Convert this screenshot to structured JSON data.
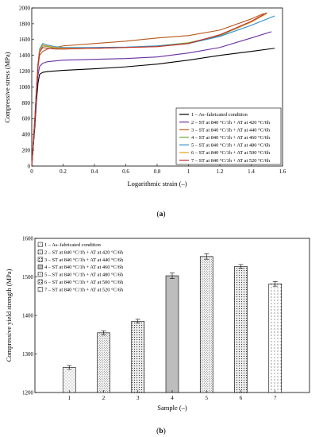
{
  "chart_data": [
    {
      "type": "line",
      "caption_prefix": "(",
      "caption_letter": "a",
      "caption_suffix": ")",
      "xlabel": "Logarithmic strain (–)",
      "ylabel": "Compressive stress (MPa)",
      "xlim": [
        0,
        1.6
      ],
      "ylim": [
        0,
        2000
      ],
      "xticks": [
        "0",
        "0.2",
        "0.4",
        "0.6",
        "0.8",
        "1",
        "1.2",
        "1.4",
        "1.6"
      ],
      "yticks": [
        "0",
        "200",
        "400",
        "600",
        "800",
        "1000",
        "1200",
        "1400",
        "1600",
        "1800",
        "2000"
      ],
      "legend_position": "bottom-right",
      "series": [
        {
          "name": "1 – As–fabricated condition",
          "color": "#000000",
          "x": [
            0,
            0.01,
            0.02,
            0.03,
            0.04,
            0.05,
            0.07,
            0.1,
            0.2,
            0.4,
            0.6,
            0.8,
            1.0,
            1.2,
            1.4,
            1.55
          ],
          "y": [
            0,
            250,
            500,
            820,
            1050,
            1160,
            1185,
            1195,
            1210,
            1230,
            1255,
            1290,
            1340,
            1400,
            1450,
            1490
          ]
        },
        {
          "name": "2 – ST at 840 °C/1h + AT at 420 °C/6h",
          "color": "#6a2fa0",
          "x": [
            0,
            0.01,
            0.02,
            0.03,
            0.04,
            0.05,
            0.07,
            0.1,
            0.2,
            0.4,
            0.6,
            0.8,
            1.0,
            1.2,
            1.4,
            1.53
          ],
          "y": [
            0,
            280,
            560,
            900,
            1150,
            1260,
            1300,
            1320,
            1340,
            1350,
            1360,
            1380,
            1430,
            1500,
            1620,
            1700
          ]
        },
        {
          "name": "3 – ST at 840 °C/1h + AT at 440 °C/6h",
          "color": "#b5561b",
          "x": [
            0,
            0.01,
            0.02,
            0.03,
            0.04,
            0.05,
            0.07,
            0.1,
            0.2,
            0.4,
            0.6,
            0.8,
            1.0,
            1.2,
            1.4,
            1.48
          ],
          "y": [
            0,
            300,
            600,
            950,
            1250,
            1400,
            1450,
            1480,
            1520,
            1550,
            1580,
            1620,
            1650,
            1720,
            1860,
            1930
          ]
        },
        {
          "name": "4 – ST at 840 °C/1h + AT at 460 °C/6h",
          "color": "#6fa33a",
          "x": [
            0,
            0.01,
            0.02,
            0.03,
            0.04,
            0.05,
            0.07,
            0.1,
            0.15,
            0.2,
            0.4,
            0.6,
            0.8,
            1.0,
            1.2,
            1.4,
            1.48
          ],
          "y": [
            0,
            300,
            600,
            960,
            1270,
            1450,
            1520,
            1510,
            1490,
            1480,
            1490,
            1500,
            1520,
            1560,
            1650,
            1820,
            1910
          ]
        },
        {
          "name": "5 – ST at 840 °C/1h + AT at 480 °C/6h",
          "color": "#2e8bc9",
          "x": [
            0,
            0.01,
            0.02,
            0.03,
            0.04,
            0.05,
            0.07,
            0.1,
            0.15,
            0.2,
            0.4,
            0.6,
            0.8,
            1.0,
            1.2,
            1.4,
            1.55
          ],
          "y": [
            0,
            310,
            620,
            980,
            1300,
            1480,
            1550,
            1530,
            1510,
            1500,
            1500,
            1505,
            1520,
            1550,
            1640,
            1780,
            1900
          ]
        },
        {
          "name": "6 – ST at 840 °C/1h + AT at 500 °C/6h",
          "color": "#e6a118",
          "x": [
            0,
            0.01,
            0.02,
            0.03,
            0.04,
            0.05,
            0.07,
            0.1,
            0.15,
            0.2,
            0.4,
            0.6,
            0.8,
            1.0,
            1.2,
            1.4,
            1.5
          ],
          "y": [
            0,
            305,
            610,
            970,
            1290,
            1460,
            1530,
            1520,
            1500,
            1490,
            1490,
            1500,
            1510,
            1550,
            1660,
            1820,
            1930
          ]
        },
        {
          "name": "7 – ST at 840 °C/1h + AT at 520 °C/6h",
          "color": "#c0282e",
          "x": [
            0,
            0.01,
            0.02,
            0.03,
            0.04,
            0.05,
            0.07,
            0.1,
            0.15,
            0.2,
            0.4,
            0.6,
            0.8,
            1.0,
            1.2,
            1.4,
            1.5
          ],
          "y": [
            0,
            300,
            600,
            960,
            1280,
            1440,
            1500,
            1490,
            1480,
            1480,
            1490,
            1500,
            1510,
            1550,
            1660,
            1830,
            1940
          ]
        }
      ]
    },
    {
      "type": "bar",
      "caption_prefix": "(",
      "caption_letter": "b",
      "caption_suffix": ")",
      "xlabel": "Sample (–)",
      "ylabel": "Compressive yield strength (MPa)",
      "ylim": [
        1200,
        1600
      ],
      "yticks": [
        "1200",
        "1300",
        "1400",
        "1500",
        "1600"
      ],
      "categories": [
        "1",
        "2",
        "3",
        "4",
        "5",
        "6",
        "7"
      ],
      "values": [
        1265,
        1355,
        1385,
        1503,
        1553,
        1527,
        1482
      ],
      "errors": [
        5,
        5,
        5,
        7,
        7,
        5,
        6
      ],
      "legend_position": "top-left",
      "legend": [
        "1 – As–fabricated condition",
        "2 – ST at 840 °C/1h + AT at 420 °C/6h",
        "3 – ST at 840 °C/1h + AT at 440 °C/6h",
        "4 – ST at 840 °C/1h + AT at 460 °C/6h",
        "5 – ST at 840 °C/1h + AT at 480 °C/6h",
        "6 – ST at 840 °C/1h + AT at 500 °C/6h",
        "7 – ST at 840 °C/1h + AT at 520 °C/6h"
      ]
    }
  ]
}
